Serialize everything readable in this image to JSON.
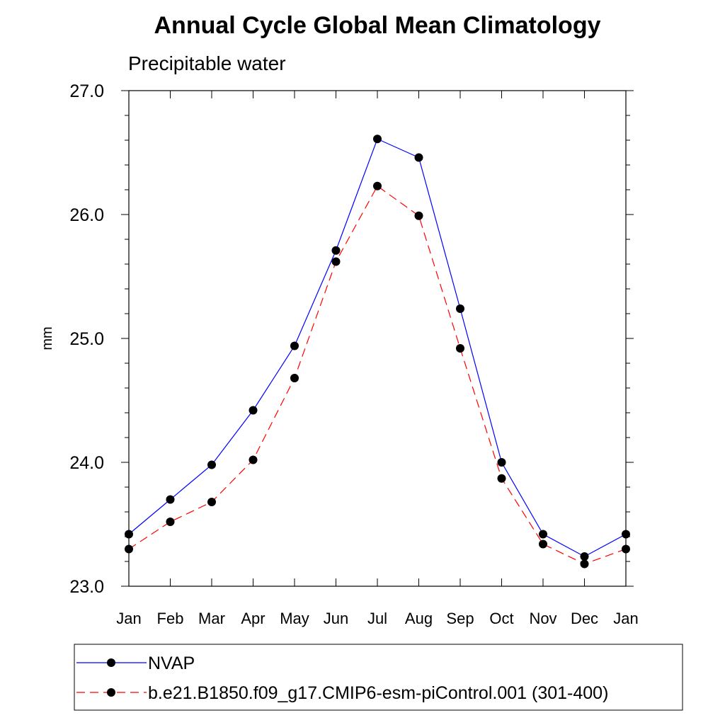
{
  "chart_data": {
    "type": "line",
    "title": "Annual Cycle Global Mean Climatology",
    "subtitle": "Precipitable water",
    "xlabel": "",
    "ylabel": "mm",
    "categories": [
      "Jan",
      "Feb",
      "Mar",
      "Apr",
      "May",
      "Jun",
      "Jul",
      "Aug",
      "Sep",
      "Oct",
      "Nov",
      "Dec",
      "Jan"
    ],
    "ylim": [
      23.0,
      27.0
    ],
    "yticks": [
      "23.0",
      "24.0",
      "25.0",
      "26.0",
      "27.0"
    ],
    "series": [
      {
        "name": "NVAP",
        "color": "#0000ff",
        "dash": "solid",
        "values": [
          23.42,
          23.7,
          23.98,
          24.42,
          24.94,
          25.71,
          26.61,
          26.46,
          25.24,
          24.0,
          23.42,
          23.24,
          23.42
        ]
      },
      {
        "name": "b.e21.B1850.f09_g17.CMIP6-esm-piControl.001 (301-400)",
        "color": "#ff0000",
        "dash": "dashed",
        "values": [
          23.3,
          23.52,
          23.68,
          24.02,
          24.68,
          25.62,
          26.23,
          25.99,
          24.92,
          23.87,
          23.34,
          23.18,
          23.3
        ]
      }
    ],
    "legend_position": "bottom",
    "grid": false
  }
}
